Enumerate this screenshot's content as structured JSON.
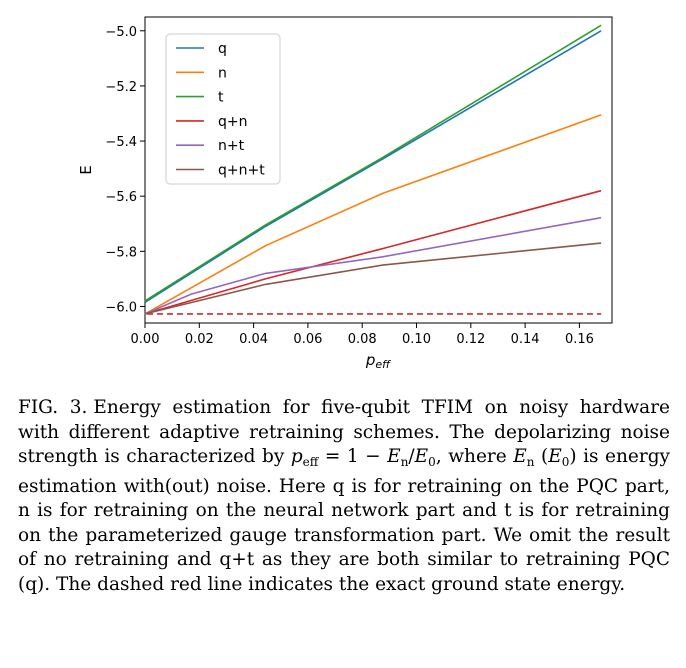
{
  "chart_data": {
    "type": "line",
    "title": "",
    "xlabel": "p_eff",
    "ylabel": "E",
    "xlim": [
      0.0,
      0.172
    ],
    "ylim": [
      -6.06,
      -4.95
    ],
    "x_ticks": [
      0.0,
      0.02,
      0.04,
      0.06,
      0.08,
      0.1,
      0.12,
      0.14,
      0.16
    ],
    "x_tick_labels": [
      "0.00",
      "0.02",
      "0.04",
      "0.06",
      "0.08",
      "0.10",
      "0.12",
      "0.14",
      "0.16"
    ],
    "y_ticks": [
      -6.0,
      -5.8,
      -5.6,
      -5.4,
      -5.2,
      -5.0
    ],
    "y_tick_labels": [
      "−6.0",
      "−5.8",
      "−5.6",
      "−5.4",
      "−5.2",
      "−5.0"
    ],
    "grid": false,
    "legend_position": "upper-left",
    "series": [
      {
        "name": "q",
        "color": "#1f77b4",
        "x": [
          0.0,
          0.0443,
          0.0875,
          0.168
        ],
        "y": [
          -5.985,
          -5.71,
          -5.465,
          -5.0
        ]
      },
      {
        "name": "n",
        "color": "#ff7f0e",
        "x": [
          0.0,
          0.0443,
          0.0875,
          0.168
        ],
        "y": [
          -6.027,
          -5.78,
          -5.59,
          -5.305
        ]
      },
      {
        "name": "t",
        "color": "#2ca02c",
        "x": [
          0.0,
          0.0443,
          0.0875,
          0.168
        ],
        "y": [
          -5.98,
          -5.705,
          -5.46,
          -4.98
        ]
      },
      {
        "name": "q+n",
        "color": "#d62728",
        "x": [
          0.0,
          0.0443,
          0.0875,
          0.168
        ],
        "y": [
          -6.027,
          -5.9,
          -5.79,
          -5.58
        ]
      },
      {
        "name": "n+t",
        "color": "#9467bd",
        "x": [
          0.0,
          0.017,
          0.0443,
          0.0875,
          0.168
        ],
        "y": [
          -6.027,
          -5.955,
          -5.88,
          -5.82,
          -5.678
        ]
      },
      {
        "name": "q+n+t",
        "color": "#8c564b",
        "x": [
          0.0,
          0.0443,
          0.0875,
          0.168
        ],
        "y": [
          -6.027,
          -5.92,
          -5.85,
          -5.77
        ]
      }
    ],
    "reference_line": {
      "y": -6.027,
      "color": "#d62728",
      "style": "dashed"
    }
  },
  "caption": {
    "label": "FIG. 3.",
    "text_part1": "Energy estimation for five-qubit TFIM on noisy hardware with different adaptive retraining schemes. The depolarizing noise strength is characterized by ",
    "eq_p": "p",
    "eq_p_sub": "eff",
    "eq_middle": " = 1 − ",
    "eq_En": "E",
    "eq_En_sub": "n",
    "eq_slash": "/",
    "eq_E0": "E",
    "eq_E0_sub": "0",
    "text_part2": ", where ",
    "where_En": "E",
    "where_En_sub": "n",
    "paren_open": " (",
    "where_E0": "E",
    "where_E0_sub": "0",
    "paren_close": ")",
    "text_part3": " is energy estimation with(out) noise. Here q is for retraining on the PQC part, n is for retraining on the neural network part and t is for retraining on the parameterized gauge transformation part. We omit the result of no retraining and q+t as they are both similar to retraining PQC (q). The dashed red line indicates the exact ground state energy."
  }
}
